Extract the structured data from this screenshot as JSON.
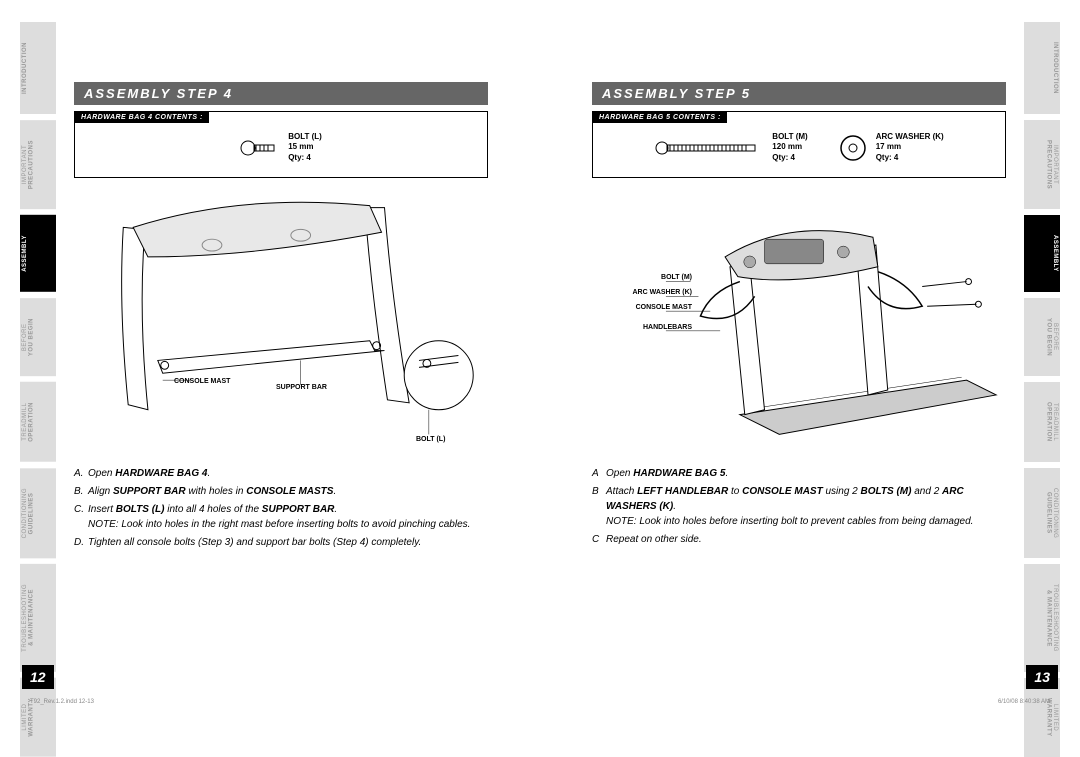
{
  "colors": {
    "header_bg": "#666666",
    "tab_inactive_bg": "#dddddd",
    "tab_inactive_text": "#999999",
    "tab_active_bg": "#000000",
    "tab_active_text": "#ffffff",
    "text": "#000000"
  },
  "tabs": [
    {
      "main": "INTRODUCTION",
      "sub": ""
    },
    {
      "main": "PRECAUTIONS",
      "sub": "IMPORTANT"
    },
    {
      "main": "ASSEMBLY",
      "sub": "",
      "active": true
    },
    {
      "main": "YOU BEGIN",
      "sub": "BEFORE"
    },
    {
      "main": "OPERATION",
      "sub": "TREADMILL"
    },
    {
      "main": "GUIDELINES",
      "sub": "CONDITIONING"
    },
    {
      "main": "& MAINTENANCE",
      "sub": "TROUBLESHOOTING"
    },
    {
      "main": "WARRANTY",
      "sub": "LIMITED"
    }
  ],
  "left_page": {
    "header": "ASSEMBLY STEP 4",
    "header_prefix": "ASSEMBLY",
    "header_step": "STEP 4",
    "hw_label": "HARDWARE BAG 4 CONTENTS :",
    "hw_items": [
      {
        "name": "BOLT (L)",
        "size": "15 mm",
        "qty": "Qty: 4",
        "icon": "bolt-short"
      }
    ],
    "diagram_labels": {
      "console_mast": "CONSOLE MAST",
      "support_bar": "SUPPORT BAR",
      "bolt_l": "BOLT (L)"
    },
    "instructions": [
      {
        "letter": "A.",
        "html": "Open <b>HARDWARE BAG 4</b>."
      },
      {
        "letter": "B.",
        "html": "Align <b>SUPPORT BAR</b> with holes in <b>CONSOLE MASTS</b>."
      },
      {
        "letter": "C.",
        "html": "Insert <b>BOLTS (L)</b> into all 4 holes of the <b>SUPPORT BAR</b>.<br>NOTE: Look into holes in the right mast before inserting bolts to avoid pinching cables."
      },
      {
        "letter": "D.",
        "html": "Tighten all console bolts (Step 3) and support bar bolts (Step 4) completely."
      }
    ],
    "page_num": "12"
  },
  "right_page": {
    "header_prefix": "ASSEMBLY",
    "header_step": "STEP 5",
    "hw_label": "HARDWARE BAG 5 CONTENTS :",
    "hw_items": [
      {
        "name": "BOLT (M)",
        "size": "120 mm",
        "qty": "Qty: 4",
        "icon": "bolt-long"
      },
      {
        "name": "ARC WASHER (K)",
        "size": "17 mm",
        "qty": "Qty: 4",
        "icon": "washer"
      }
    ],
    "diagram_labels": {
      "bolt_m": "BOLT (M)",
      "arc_washer_k": "ARC WASHER (K)",
      "console_mast": "CONSOLE MAST",
      "handlebars": "HANDLEBARS"
    },
    "instructions": [
      {
        "letter": "A",
        "html": "Open <b>HARDWARE BAG 5</b>."
      },
      {
        "letter": "B",
        "html": "Attach <b>LEFT HANDLEBAR</b> to <b>CONSOLE MAST</b> using 2 <b>BOLTS (M)</b> and 2 <b>ARC WASHERS (K)</b>.<br>NOTE: Look into holes before inserting bolt to prevent cables from being damaged."
      },
      {
        "letter": "C",
        "html": "Repeat on other side."
      }
    ],
    "page_num": "13"
  },
  "footer": {
    "left": "T92_Rev.1.2.indd   12-13",
    "right": "6/10/08   8:40:38 AM"
  }
}
